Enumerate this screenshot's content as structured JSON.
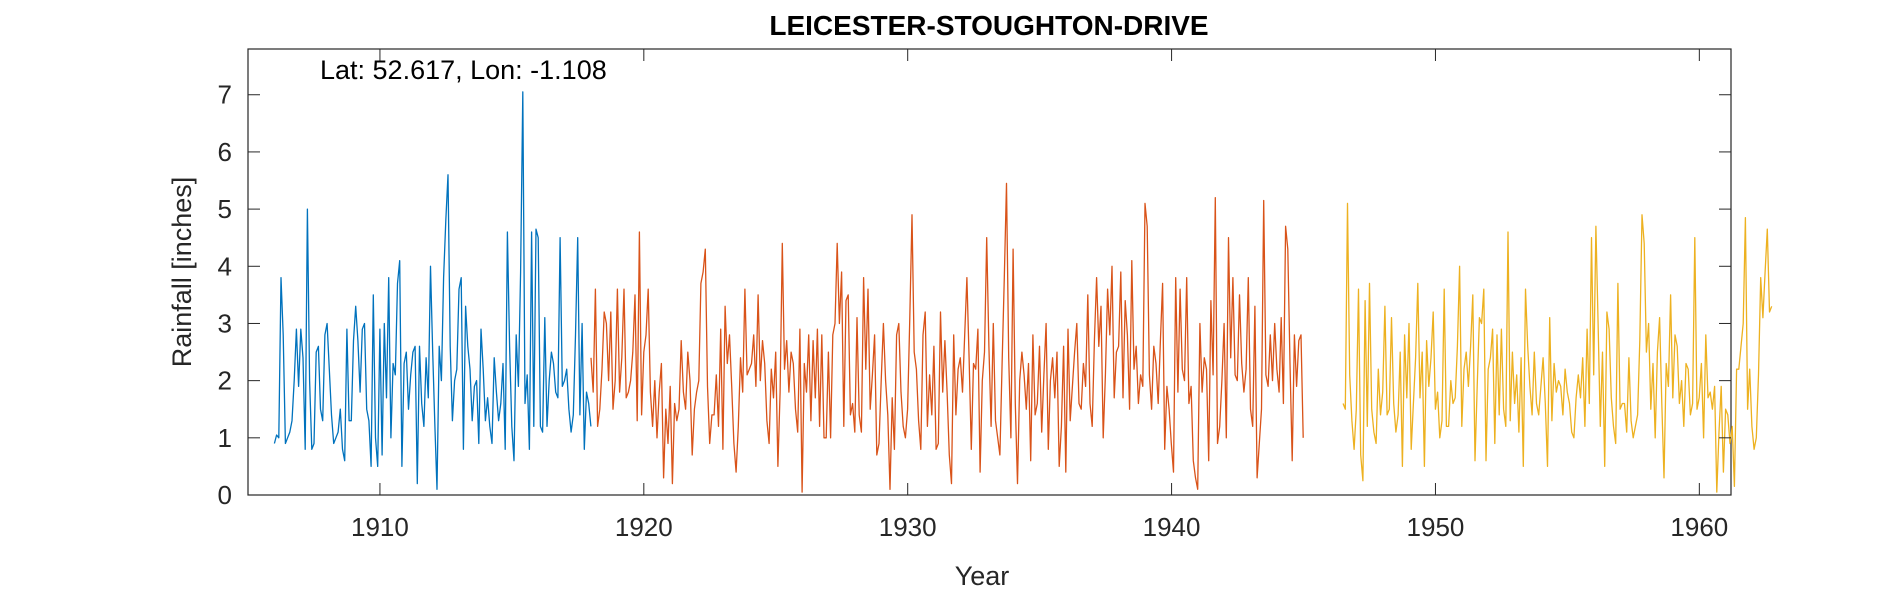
{
  "chart_data": {
    "type": "line",
    "title": "LEICESTER-STOUGHTON-DRIVE",
    "annotation": "Lat: 52.617, Lon: -1.108",
    "xlabel": "Year",
    "ylabel": "Rainfall [inches]",
    "xlim": [
      1905.0,
      1961.2
    ],
    "ylim": [
      0,
      7.8
    ],
    "xticks": [
      1910,
      1920,
      1930,
      1940,
      1950,
      1960
    ],
    "yticks": [
      0,
      1,
      2,
      3,
      4,
      5,
      6,
      7
    ],
    "grid": false,
    "series": [
      {
        "color": "#0072BD",
        "x_start": 1906.0,
        "x_step": 0.0833,
        "values": [
          0.9,
          1.05,
          1.0,
          3.8,
          2.8,
          0.9,
          1.0,
          1.1,
          1.3,
          2.0,
          2.9,
          1.9,
          2.9,
          2.4,
          0.8,
          5.0,
          2.0,
          0.8,
          0.9,
          2.5,
          2.6,
          1.5,
          1.3,
          2.8,
          3.0,
          2.2,
          1.4,
          0.9,
          1.0,
          1.1,
          1.5,
          0.8,
          0.6,
          2.9,
          1.3,
          1.3,
          2.7,
          3.3,
          2.7,
          1.8,
          2.9,
          3.0,
          1.5,
          1.3,
          0.5,
          3.5,
          1.0,
          0.5,
          2.9,
          0.7,
          3.0,
          1.7,
          3.8,
          1.0,
          2.3,
          2.1,
          3.7,
          4.1,
          0.5,
          2.3,
          2.5,
          1.5,
          2.1,
          2.5,
          2.6,
          0.2,
          2.6,
          1.6,
          1.2,
          2.4,
          1.7,
          4.0,
          2.5,
          1.2,
          0.1,
          2.6,
          2.0,
          3.8,
          4.8,
          5.6,
          2.6,
          1.3,
          2.0,
          2.2,
          3.6,
          3.8,
          0.8,
          3.3,
          2.6,
          2.2,
          1.3,
          1.9,
          2.0,
          0.9,
          2.9,
          2.2,
          1.3,
          1.7,
          1.2,
          0.9,
          2.4,
          1.8,
          1.3,
          1.6,
          2.3,
          0.8,
          4.6,
          2.6,
          1.2,
          0.6,
          2.8,
          1.9,
          3.9,
          7.05,
          1.6,
          2.1,
          0.8,
          4.6,
          1.2,
          4.65,
          4.5,
          1.2,
          1.1,
          3.1,
          1.2,
          2.0,
          2.5,
          2.3,
          1.8,
          1.7,
          4.5,
          1.9,
          2.0,
          2.2,
          1.5,
          1.1,
          1.4,
          2.8,
          4.5,
          1.4,
          3.0,
          0.8,
          1.8,
          1.6,
          1.2
        ]
      },
      {
        "color": "#D95319",
        "x_start": 1918.0,
        "x_step": 0.0833,
        "values": [
          2.4,
          1.8,
          3.6,
          1.2,
          1.5,
          2.2,
          3.2,
          3.0,
          2.0,
          3.2,
          1.5,
          2.0,
          3.6,
          1.8,
          2.4,
          3.6,
          1.7,
          1.8,
          2.0,
          2.5,
          3.5,
          1.3,
          4.6,
          1.4,
          2.5,
          2.8,
          3.6,
          1.8,
          1.2,
          2.0,
          1.0,
          1.8,
          2.3,
          0.3,
          1.5,
          0.9,
          1.9,
          0.2,
          1.6,
          1.3,
          1.5,
          2.7,
          1.8,
          1.5,
          2.5,
          2.0,
          0.7,
          1.5,
          1.8,
          2.0,
          3.7,
          3.9,
          4.3,
          1.9,
          0.9,
          1.4,
          1.4,
          2.1,
          1.2,
          2.9,
          0.8,
          3.3,
          2.3,
          2.8,
          1.9,
          0.9,
          0.4,
          1.2,
          2.4,
          1.8,
          3.6,
          2.1,
          2.2,
          2.3,
          2.8,
          1.9,
          3.5,
          2.0,
          2.7,
          2.3,
          1.3,
          0.9,
          2.2,
          1.7,
          2.5,
          0.5,
          1.8,
          4.4,
          2.2,
          2.7,
          1.8,
          2.5,
          2.3,
          1.5,
          1.1,
          2.9,
          0.05,
          2.3,
          1.8,
          2.8,
          1.3,
          2.7,
          1.7,
          2.9,
          1.2,
          2.8,
          1.0,
          1.0,
          2.5,
          1.0,
          2.8,
          3.0,
          4.4,
          3.0,
          3.9,
          1.2,
          3.4,
          3.5,
          1.4,
          1.6,
          1.1,
          3.1,
          1.4,
          1.1,
          3.8,
          2.2,
          3.6,
          1.5,
          2.1,
          2.8,
          0.7,
          0.9,
          2.0,
          3.0,
          2.0,
          1.4,
          0.1,
          1.7,
          0.8,
          2.8,
          3.0,
          1.8,
          1.2,
          1.0,
          1.5,
          3.1,
          4.9,
          2.5,
          2.2,
          1.3,
          0.8,
          2.8,
          3.2,
          1.2,
          2.1,
          1.4,
          2.6,
          0.8,
          0.9,
          3.2,
          1.8,
          2.7,
          1.8,
          0.7,
          0.2,
          2.8,
          1.4,
          2.2,
          2.4,
          1.8,
          2.8,
          3.8,
          2.4,
          0.8,
          2.3,
          2.2,
          2.9,
          0.4,
          2.0,
          2.5,
          4.5,
          2.6,
          1.2,
          3.0,
          1.3,
          1.0,
          0.7,
          2.3,
          3.8,
          5.45,
          2.4,
          1.0,
          4.3,
          1.6,
          0.2,
          2.0,
          2.5,
          2.1,
          1.5,
          2.3,
          0.6,
          2.8,
          1.4,
          1.6,
          2.6,
          1.1,
          2.1,
          3.0,
          0.8,
          2.0,
          2.4,
          1.7,
          2.5,
          0.5,
          1.2,
          2.6,
          0.4,
          2.9,
          1.3,
          1.9,
          2.5,
          3.0,
          1.6,
          1.5,
          2.3,
          1.9,
          3.5,
          1.6,
          1.2,
          2.7,
          3.8,
          2.6,
          3.3,
          1.0,
          2.1,
          3.6,
          2.8,
          4.0,
          1.7,
          2.5,
          2.6,
          3.9,
          1.7,
          3.4,
          2.8,
          1.5,
          4.1,
          2.2,
          2.6,
          1.6,
          2.1,
          1.9,
          5.1,
          4.7,
          2.1,
          1.5,
          2.6,
          2.3,
          1.6,
          2.7,
          3.7,
          0.8,
          1.9,
          1.5,
          0.9,
          0.4,
          3.8,
          1.8,
          3.6,
          2.2,
          2.0,
          3.8,
          1.6,
          1.9,
          0.6,
          0.3,
          0.1,
          3.0,
          1.8,
          2.4,
          2.2,
          0.6,
          3.4,
          2.1,
          5.2,
          0.9,
          1.2,
          2.0,
          3.0,
          1.0,
          4.5,
          2.4,
          3.8,
          2.1,
          2.0,
          3.5,
          2.3,
          1.8,
          2.2,
          3.8,
          1.5,
          1.2,
          3.3,
          0.3,
          0.9,
          1.5,
          5.15,
          2.1,
          1.9,
          2.8,
          2.0,
          3.0,
          2.2,
          1.8,
          3.1,
          1.6,
          4.7,
          4.3,
          2.3,
          0.6,
          2.8,
          1.9,
          2.7,
          2.8,
          1.0
        ]
      },
      {
        "color": "#EDB120",
        "x_start": 1946.5,
        "x_step": 0.0833,
        "values": [
          1.6,
          1.5,
          5.1,
          2.1,
          1.3,
          0.8,
          1.5,
          3.6,
          0.7,
          0.25,
          3.4,
          1.2,
          3.7,
          1.5,
          1.1,
          0.9,
          2.2,
          1.4,
          1.8,
          3.3,
          1.4,
          1.5,
          3.1,
          1.6,
          1.1,
          1.4,
          2.5,
          0.5,
          2.8,
          1.7,
          3.0,
          0.8,
          1.6,
          2.4,
          3.7,
          1.7,
          2.5,
          0.5,
          2.7,
          1.9,
          2.4,
          3.2,
          1.5,
          1.8,
          1.0,
          1.3,
          3.6,
          1.2,
          1.2,
          2.0,
          1.6,
          1.7,
          2.6,
          4.0,
          1.2,
          2.2,
          2.5,
          1.9,
          2.6,
          3.5,
          0.6,
          1.9,
          3.1,
          3.0,
          3.6,
          0.6,
          2.2,
          2.4,
          2.9,
          0.9,
          2.8,
          1.4,
          2.9,
          1.5,
          1.2,
          4.6,
          1.3,
          2.5,
          1.6,
          2.1,
          1.1,
          2.4,
          0.5,
          3.6,
          2.6,
          1.9,
          1.4,
          2.5,
          1.6,
          1.4,
          1.9,
          2.4,
          1.6,
          0.5,
          3.1,
          1.3,
          2.3,
          1.8,
          2.0,
          1.9,
          1.4,
          2.2,
          1.8,
          1.6,
          1.1,
          1.0,
          1.7,
          2.1,
          1.7,
          2.4,
          1.2,
          2.9,
          1.6,
          4.5,
          2.1,
          4.7,
          3.0,
          1.2,
          2.5,
          0.5,
          3.2,
          2.9,
          1.7,
          1.2,
          0.9,
          3.7,
          1.5,
          1.6,
          1.6,
          1.1,
          2.4,
          1.3,
          1.0,
          1.2,
          1.4,
          2.7,
          4.9,
          4.4,
          2.5,
          3.0,
          1.5,
          2.3,
          1.0,
          2.5,
          3.1,
          1.6,
          0.3,
          2.3,
          1.9,
          3.5,
          1.7,
          2.8,
          2.6,
          1.6,
          2.0,
          1.2,
          2.3,
          2.2,
          1.4,
          1.6,
          4.5,
          1.5,
          1.7,
          2.3,
          1.0,
          2.8,
          1.7,
          1.8,
          1.5,
          1.9,
          0.05,
          1.1,
          1.9,
          0.4,
          1.5,
          1.4,
          0.9,
          1.2,
          0.15,
          2.2,
          2.2,
          2.6,
          3.0,
          4.85,
          1.5,
          2.2,
          1.2,
          0.8,
          1.0,
          2.1,
          3.8,
          3.1,
          3.9,
          4.65,
          3.2,
          3.3
        ]
      }
    ]
  }
}
